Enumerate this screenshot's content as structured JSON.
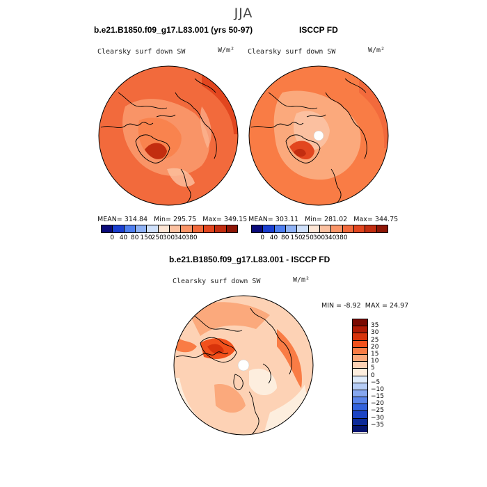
{
  "title": "JJA",
  "panels": [
    {
      "case_title": "b.e21.B1850.f09_g17.L83.001 (yrs 50-97)",
      "variable": "Clearsky surf down SW",
      "units": "W/m²",
      "stats": {
        "mean_label": "MEAN=",
        "mean": "314.84",
        "min_label": "Min=",
        "min": "295.75",
        "max_label": "Max=",
        "max": "349.15"
      },
      "colorbar_ticks": [
        "0",
        "40",
        "80",
        "150",
        "250",
        "300",
        "340",
        "380"
      ]
    },
    {
      "case_title": "ISCCP FD",
      "variable": "Clearsky surf down SW",
      "units": "W/m²",
      "stats": {
        "mean_label": "MEAN=",
        "mean": "303.11",
        "min_label": "Min=",
        "min": "281.02",
        "max_label": "Max=",
        "max": "344.75"
      },
      "colorbar_ticks": [
        "0",
        "40",
        "80",
        "150",
        "250",
        "300",
        "340",
        "380"
      ]
    }
  ],
  "diff": {
    "title": "b.e21.B1850.f09_g17.L83.001 - ISCCP FD",
    "variable": "Clearsky surf down SW",
    "units": "W/m²",
    "stats": {
      "min_label": "MIN =",
      "min": "-8.92",
      "max_label": "MAX =",
      "max": "24.97"
    },
    "colorbar_ticks": [
      "35",
      "30",
      "25",
      "20",
      "15",
      "10",
      "5",
      "0",
      "−5",
      "−10",
      "−15",
      "−20",
      "−25",
      "−30",
      "−35"
    ]
  },
  "colors": {
    "abs_scale": [
      "#0a0a7a",
      "#1a3fd0",
      "#4f7ff0",
      "#8fb2f5",
      "#cfe0fa",
      "#fde5d4",
      "#fbc0a0",
      "#f99467",
      "#f26a3c",
      "#e2461f",
      "#c22d10",
      "#8e1606"
    ],
    "diff_scale": [
      "#7a0a02",
      "#b01a05",
      "#d8330b",
      "#f2511c",
      "#f97c45",
      "#fba97c",
      "#fdd2b5",
      "#fdeede",
      "#e0ecfb",
      "#b6cdf6",
      "#86a7f0",
      "#5a84ea",
      "#3463dd",
      "#1c44c4",
      "#0c2a98",
      "#051570"
    ]
  }
}
